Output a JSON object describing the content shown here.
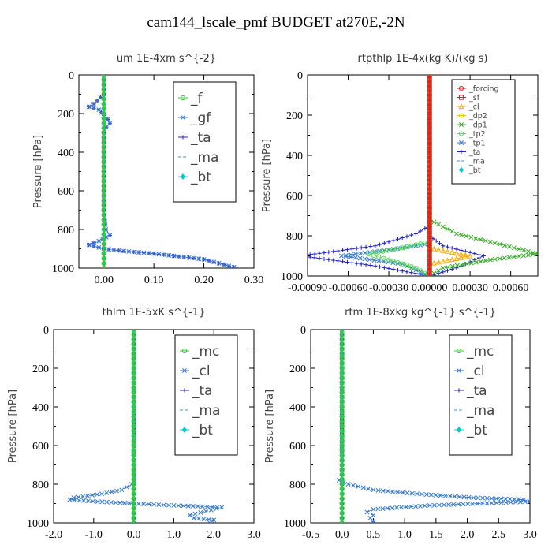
{
  "figure_title": "cam144_lscale_pmf  BUDGET at270E,-2N",
  "chart_data": [
    {
      "type": "line",
      "title": "um   1E-4xm s^{-2}",
      "ylabel": "Pressure [hPa]",
      "ylim": [
        1000,
        0
      ],
      "xlim": [
        -0.05,
        0.3
      ],
      "xticks": [
        "0.00",
        "0.10",
        "0.20",
        "0.30"
      ],
      "xtick_values": [
        0.0,
        0.1,
        0.2,
        0.3
      ],
      "yticks": [
        "0",
        "200",
        "400",
        "600",
        "800",
        "1000"
      ],
      "legend_style": "large",
      "series": [
        {
          "name": "_f",
          "color": "#33cc33",
          "marker": "o",
          "points": [
            [
              0.0,
              0
            ],
            [
              0.0,
              100
            ],
            [
              0.0,
              200
            ],
            [
              0.0,
              300
            ],
            [
              0.0,
              400
            ],
            [
              0.0,
              500
            ],
            [
              0.0,
              600
            ],
            [
              0.0,
              700
            ],
            [
              0.0,
              800
            ],
            [
              0.0,
              900
            ],
            [
              0.0,
              1000
            ]
          ]
        },
        {
          "name": "_gf",
          "color": "#3377cc",
          "marker": "x",
          "points": [
            [
              0.0,
              0
            ],
            [
              0.0,
              100
            ],
            [
              -0.02,
              150
            ],
            [
              -0.03,
              165
            ],
            [
              -0.01,
              180
            ],
            [
              0.0,
              210
            ],
            [
              0.008,
              230
            ],
            [
              0.012,
              250
            ],
            [
              0.005,
              270
            ],
            [
              0.0,
              300
            ],
            [
              0.0,
              400
            ],
            [
              0.0,
              500
            ],
            [
              0.0,
              600
            ],
            [
              0.0,
              700
            ],
            [
              0.004,
              800
            ],
            [
              0.012,
              830
            ],
            [
              -0.01,
              860
            ],
            [
              -0.03,
              880
            ],
            [
              0.0,
              900
            ],
            [
              0.04,
              912
            ],
            [
              0.1,
              925
            ],
            [
              0.15,
              940
            ],
            [
              0.2,
              955
            ],
            [
              0.23,
              975
            ],
            [
              0.26,
              995
            ]
          ]
        },
        {
          "name": "_ta",
          "color": "#2222cc",
          "marker": "+",
          "points": [
            [
              0.0,
              0
            ],
            [
              0.0,
              100
            ],
            [
              -0.02,
              150
            ],
            [
              -0.03,
              165
            ],
            [
              -0.01,
              180
            ],
            [
              0.0,
              210
            ],
            [
              0.008,
              230
            ],
            [
              0.012,
              250
            ],
            [
              0.005,
              270
            ],
            [
              0.0,
              300
            ],
            [
              0.0,
              400
            ],
            [
              0.0,
              500
            ],
            [
              0.0,
              600
            ],
            [
              0.0,
              700
            ],
            [
              0.004,
              800
            ],
            [
              0.012,
              830
            ],
            [
              -0.01,
              860
            ],
            [
              -0.03,
              880
            ],
            [
              0.0,
              900
            ],
            [
              0.04,
              912
            ],
            [
              0.1,
              925
            ],
            [
              0.15,
              940
            ],
            [
              0.2,
              955
            ],
            [
              0.23,
              975
            ],
            [
              0.26,
              995
            ]
          ]
        },
        {
          "name": "_ma",
          "color": "#3399dd",
          "marker": "-",
          "points": [
            [
              0.0,
              0
            ],
            [
              0.0,
              1000
            ]
          ]
        },
        {
          "name": "_bt",
          "color": "#00cccc",
          "marker": "d",
          "points": [
            [
              0.0,
              0
            ],
            [
              0.0,
              200
            ],
            [
              0.0,
              400
            ],
            [
              0.0,
              600
            ],
            [
              0.0,
              800
            ],
            [
              0.0,
              1000
            ]
          ]
        }
      ]
    },
    {
      "type": "line",
      "title": "rtpthlp   1E-4x(kg K)/(kg s)",
      "ylabel": "Pressure [hPa]",
      "ylim": [
        1000,
        0
      ],
      "xlim": [
        -0.0009,
        0.0008
      ],
      "xticks": [
        "-0.00090",
        "-0.00060",
        "-0.00030",
        "0.00000",
        "0.00030",
        "0.00060"
      ],
      "xtick_values": [
        -0.0009,
        -0.0006,
        -0.0003,
        0.0,
        0.0003,
        0.0006
      ],
      "yticks": [
        "0",
        "200",
        "400",
        "600",
        "800",
        "1000"
      ],
      "legend_style": "small",
      "series": [
        {
          "name": "_forcing",
          "color": "#dd2222",
          "marker": "o",
          "points": [
            [
              0.0,
              0
            ],
            [
              0.0,
              200
            ],
            [
              0.0,
              400
            ],
            [
              0.0,
              600
            ],
            [
              0.0,
              800
            ],
            [
              0.0,
              1000
            ]
          ]
        },
        {
          "name": "_sf",
          "color": "#cc2222",
          "marker": "s",
          "points": [
            [
              0.0,
              0
            ],
            [
              0.0,
              1000
            ]
          ]
        },
        {
          "name": "_cl",
          "color": "#ffaa00",
          "marker": "^",
          "points": [
            [
              0.0,
              0
            ],
            [
              0.0,
              860
            ],
            [
              0.0003,
              900
            ],
            [
              0.0,
              940
            ],
            [
              0.0,
              1000
            ]
          ]
        },
        {
          "name": "_dp2",
          "color": "#ddcc00",
          "marker": "o",
          "points": [
            [
              0.0,
              0
            ],
            [
              0.0,
              1000
            ]
          ]
        },
        {
          "name": "_dp1",
          "color": "#33aa22",
          "marker": "x",
          "points": [
            [
              0.0,
              0
            ],
            [
              0.0,
              720
            ],
            [
              0.0002,
              790
            ],
            [
              0.00045,
              830
            ],
            [
              0.0008,
              890
            ],
            [
              0.00045,
              920
            ],
            [
              0.0001,
              960
            ],
            [
              0.0,
              1000
            ]
          ]
        },
        {
          "name": "_tp2",
          "color": "#55dd55",
          "marker": "o",
          "points": [
            [
              0.0,
              0
            ],
            [
              0.0,
              830
            ],
            [
              -0.0002,
              860
            ],
            [
              -0.00045,
              890
            ],
            [
              -0.0003,
              920
            ],
            [
              -0.0001,
              960
            ],
            [
              0.0,
              1000
            ]
          ]
        },
        {
          "name": "_tp1",
          "color": "#3377cc",
          "marker": "x",
          "points": [
            [
              0.0,
              0
            ],
            [
              0.0,
              840
            ],
            [
              -0.0003,
              870
            ],
            [
              -0.00065,
              900
            ],
            [
              -0.0002,
              940
            ],
            [
              0.0,
              1000
            ]
          ]
        },
        {
          "name": "_ta",
          "color": "#2222cc",
          "marker": "+",
          "points": [
            [
              0.0,
              0
            ],
            [
              0.0,
              750
            ],
            [
              -0.0001,
              790
            ],
            [
              -0.0004,
              850
            ],
            [
              -0.00095,
              900
            ],
            [
              -0.0004,
              950
            ],
            [
              0.0,
              1000
            ],
            [
              0.0002,
              960
            ],
            [
              0.0004,
              900
            ],
            [
              0.0001,
              850
            ],
            [
              0.0,
              800
            ]
          ]
        },
        {
          "name": "_ma",
          "color": "#3399dd",
          "marker": "-",
          "points": [
            [
              0.0,
              0
            ],
            [
              0.0,
              1000
            ]
          ]
        },
        {
          "name": "_bt",
          "color": "#00cccc",
          "marker": "d",
          "points": [
            [
              0.0,
              0
            ],
            [
              0.0,
              1000
            ]
          ]
        }
      ]
    },
    {
      "type": "line",
      "title": "thlm   1E-5xK s^{-1}",
      "ylabel": "Pressure [hPa]",
      "ylim": [
        1000,
        0
      ],
      "xlim": [
        -2.0,
        3.0
      ],
      "xticks": [
        "-2.0",
        "-1.0",
        "0.0",
        "1.0",
        "2.0",
        "3.0"
      ],
      "xtick_values": [
        -2.0,
        -1.0,
        0.0,
        1.0,
        2.0,
        3.0
      ],
      "yticks": [
        "0",
        "200",
        "400",
        "600",
        "800",
        "1000"
      ],
      "legend_style": "large",
      "series": [
        {
          "name": "_mc",
          "color": "#33cc33",
          "marker": "o",
          "points": [
            [
              0.0,
              0
            ],
            [
              0.0,
              100
            ],
            [
              0.0,
              200
            ],
            [
              0.0,
              300
            ],
            [
              0.0,
              400
            ],
            [
              0.0,
              500
            ],
            [
              0.0,
              600
            ],
            [
              0.0,
              700
            ],
            [
              0.0,
              800
            ],
            [
              0.0,
              900
            ],
            [
              0.0,
              1000
            ]
          ]
        },
        {
          "name": "_cl",
          "color": "#3377cc",
          "marker": "x",
          "points": [
            [
              0.0,
              0
            ],
            [
              0.0,
              200
            ],
            [
              0.0,
              400
            ],
            [
              0.0,
              600
            ],
            [
              0.0,
              780
            ],
            [
              -0.05,
              800
            ],
            [
              -0.3,
              830
            ],
            [
              -0.8,
              850
            ],
            [
              -1.5,
              870
            ],
            [
              -1.6,
              880
            ],
            [
              -0.9,
              890
            ],
            [
              0.0,
              900
            ],
            [
              1.0,
              910
            ],
            [
              2.2,
              920
            ],
            [
              1.8,
              940
            ],
            [
              1.4,
              960
            ],
            [
              1.5,
              975
            ],
            [
              2.0,
              985
            ],
            [
              1.9,
              1000
            ]
          ]
        },
        {
          "name": "_ta",
          "color": "#2222cc",
          "marker": "+",
          "points": [
            [
              0.0,
              0
            ],
            [
              0.0,
              1000
            ]
          ]
        },
        {
          "name": "_ma",
          "color": "#3399dd",
          "marker": "-",
          "points": [
            [
              0.0,
              0
            ],
            [
              0.0,
              1000
            ]
          ]
        },
        {
          "name": "_bt",
          "color": "#00cccc",
          "marker": "d",
          "points": [
            [
              0.0,
              0
            ],
            [
              0.0,
              200
            ],
            [
              0.0,
              400
            ],
            [
              0.0,
              600
            ],
            [
              0.0,
              800
            ],
            [
              0.0,
              1000
            ]
          ]
        }
      ]
    },
    {
      "type": "line",
      "title": "rtm   1E-8xkg kg^{-1} s^{-1}",
      "ylabel": "Pressure [hPa]",
      "ylim": [
        1000,
        0
      ],
      "xlim": [
        -0.5,
        3.0
      ],
      "xticks": [
        "-0.5",
        "0.0",
        "0.5",
        "1.0",
        "1.5",
        "2.0",
        "2.5",
        "3.0"
      ],
      "xtick_values": [
        -0.5,
        0.0,
        0.5,
        1.0,
        1.5,
        2.0,
        2.5,
        3.0
      ],
      "yticks": [
        "0",
        "200",
        "400",
        "600",
        "800",
        "1000"
      ],
      "legend_style": "large",
      "series": [
        {
          "name": "_mc",
          "color": "#33cc33",
          "marker": "o",
          "points": [
            [
              0.0,
              0
            ],
            [
              0.0,
              100
            ],
            [
              0.0,
              200
            ],
            [
              0.0,
              300
            ],
            [
              0.0,
              400
            ],
            [
              0.0,
              500
            ],
            [
              0.0,
              600
            ],
            [
              0.0,
              700
            ],
            [
              0.0,
              800
            ],
            [
              0.0,
              900
            ],
            [
              0.0,
              1000
            ]
          ]
        },
        {
          "name": "_cl",
          "color": "#3377cc",
          "marker": "x",
          "points": [
            [
              0.0,
              0
            ],
            [
              0.0,
              200
            ],
            [
              0.0,
              400
            ],
            [
              0.0,
              600
            ],
            [
              0.0,
              760
            ],
            [
              -0.05,
              780
            ],
            [
              0.1,
              800
            ],
            [
              0.5,
              830
            ],
            [
              1.2,
              850
            ],
            [
              2.1,
              870
            ],
            [
              2.9,
              880
            ],
            [
              3.0,
              890
            ],
            [
              1.4,
              910
            ],
            [
              0.5,
              930
            ],
            [
              0.4,
              945
            ],
            [
              0.5,
              960
            ],
            [
              0.45,
              975
            ],
            [
              0.5,
              990
            ],
            [
              0.5,
              1000
            ]
          ]
        },
        {
          "name": "_ta",
          "color": "#2222cc",
          "marker": "+",
          "points": [
            [
              0.0,
              0
            ],
            [
              0.0,
              1000
            ]
          ]
        },
        {
          "name": "_ma",
          "color": "#3399dd",
          "marker": "-",
          "points": [
            [
              0.0,
              0
            ],
            [
              0.0,
              1000
            ]
          ]
        },
        {
          "name": "_bt",
          "color": "#00cccc",
          "marker": "d",
          "points": [
            [
              0.0,
              0
            ],
            [
              0.0,
              200
            ],
            [
              0.0,
              400
            ],
            [
              0.0,
              600
            ],
            [
              0.0,
              800
            ],
            [
              0.0,
              1000
            ]
          ]
        }
      ]
    }
  ]
}
